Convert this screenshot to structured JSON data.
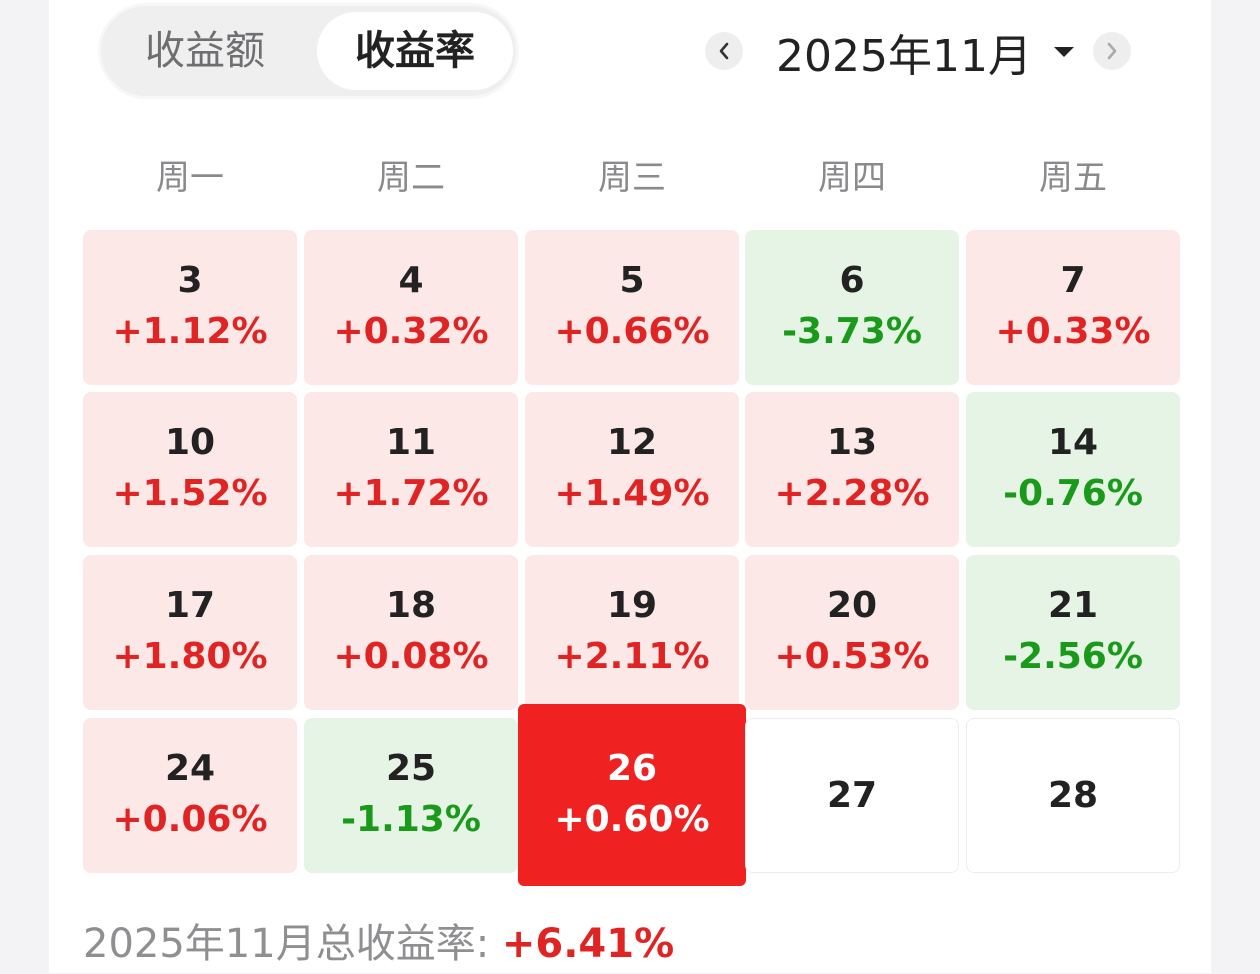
{
  "tabs": {
    "amount_label": "收益额",
    "rate_label": "收益率",
    "active": "收益率"
  },
  "month_nav": {
    "current": "2025年11月",
    "prev_icon": "chevron-left-icon",
    "next_icon": "chevron-right-icon",
    "dropdown_icon": "caret-down-icon"
  },
  "weekdays": [
    "周一",
    "周二",
    "周三",
    "周四",
    "周五"
  ],
  "weeks": [
    [
      {
        "day": "3",
        "value": "+1.12%",
        "trend": "up"
      },
      {
        "day": "4",
        "value": "+0.32%",
        "trend": "up"
      },
      {
        "day": "5",
        "value": "+0.66%",
        "trend": "up"
      },
      {
        "day": "6",
        "value": "-3.73%",
        "trend": "down"
      },
      {
        "day": "7",
        "value": "+0.33%",
        "trend": "up"
      }
    ],
    [
      {
        "day": "10",
        "value": "+1.52%",
        "trend": "up"
      },
      {
        "day": "11",
        "value": "+1.72%",
        "trend": "up"
      },
      {
        "day": "12",
        "value": "+1.49%",
        "trend": "up"
      },
      {
        "day": "13",
        "value": "+2.28%",
        "trend": "up"
      },
      {
        "day": "14",
        "value": "-0.76%",
        "trend": "down"
      }
    ],
    [
      {
        "day": "17",
        "value": "+1.80%",
        "trend": "up"
      },
      {
        "day": "18",
        "value": "+0.08%",
        "trend": "up"
      },
      {
        "day": "19",
        "value": "+2.11%",
        "trend": "up"
      },
      {
        "day": "20",
        "value": "+0.53%",
        "trend": "up"
      },
      {
        "day": "21",
        "value": "-2.56%",
        "trend": "down"
      }
    ],
    [
      {
        "day": "24",
        "value": "+0.06%",
        "trend": "up"
      },
      {
        "day": "25",
        "value": "-1.13%",
        "trend": "down"
      },
      {
        "day": "26",
        "value": "+0.60%",
        "trend": "up",
        "selected": true
      },
      {
        "day": "27",
        "value": "",
        "trend": "none"
      },
      {
        "day": "28",
        "value": "",
        "trend": "none"
      }
    ]
  ],
  "total": {
    "label": "2025年11月总收益率: ",
    "value": "+6.41%"
  },
  "colors": {
    "gain": "#e02424",
    "loss": "#1a9a1a",
    "gain_bg": "#fde8e8",
    "loss_bg": "#e5f4e5",
    "selected_bg": "#ef2121"
  }
}
